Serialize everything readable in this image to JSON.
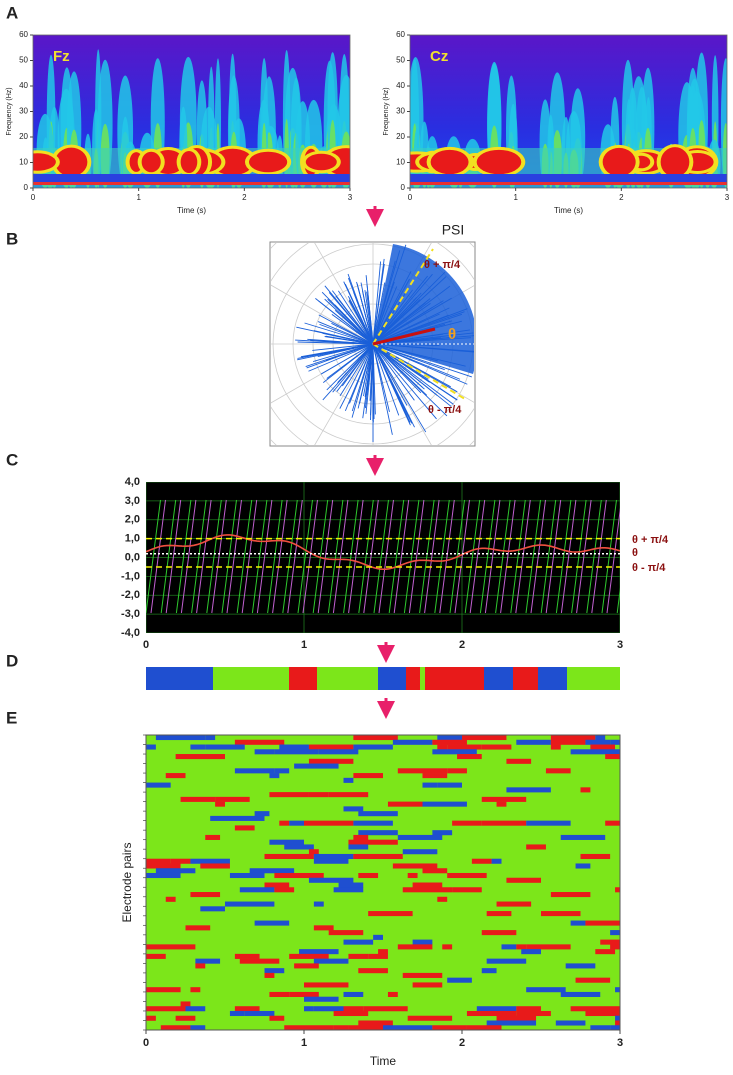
{
  "panels": {
    "A": {
      "label": "A",
      "plots": [
        {
          "annotation": "Fz",
          "ylabel": "Frequency (Hz)",
          "xlabel": "Time (s)",
          "xlim": [
            0,
            3
          ],
          "ylim": [
            0,
            60
          ],
          "xticks": [
            0,
            1,
            2,
            3
          ],
          "yticks": [
            0,
            10,
            20,
            30,
            40,
            50,
            60
          ]
        },
        {
          "annotation": "Cz",
          "ylabel": "Frequency (Hz)",
          "xlabel": "Time (s)",
          "xlim": [
            0,
            3
          ],
          "ylim": [
            0,
            60
          ],
          "xticks": [
            0,
            1,
            2,
            3
          ],
          "yticks": [
            0,
            10,
            20,
            30,
            40,
            50,
            60
          ]
        }
      ]
    },
    "B": {
      "label": "B",
      "title": "PSI",
      "annotations": [
        "θ + π/4",
        "θ",
        "θ - π/4"
      ]
    },
    "C": {
      "label": "C",
      "xlim": [
        0,
        3
      ],
      "ylim": [
        -4,
        4
      ],
      "xticks": [
        0,
        1,
        2,
        3
      ],
      "yticks": [
        {
          "value": 4,
          "label": "4,0"
        },
        {
          "value": 3,
          "label": "3,0"
        },
        {
          "value": 2,
          "label": "2,0"
        },
        {
          "value": 1,
          "label": "1,0"
        },
        {
          "value": 0,
          "label": "0,0"
        },
        {
          "value": -1,
          "label": "-1,0"
        },
        {
          "value": -2,
          "label": "-2,0"
        },
        {
          "value": -3,
          "label": "-3,0"
        },
        {
          "value": -4,
          "label": "-4,0"
        }
      ],
      "lines": [
        {
          "label": "θ + π/4",
          "value": 1,
          "color": "#f2f200"
        },
        {
          "label": "θ",
          "value": 0.2,
          "color": "#ffffff"
        },
        {
          "label": "θ - π/4",
          "value": -0.5,
          "color": "#f2f200"
        }
      ]
    },
    "D": {
      "label": "D"
    },
    "E": {
      "label": "E",
      "ylabel": "Electrode pairs",
      "xlabel": "Time",
      "xlim": [
        0,
        3
      ],
      "xticks": [
        0,
        1,
        2,
        3
      ]
    }
  }
}
